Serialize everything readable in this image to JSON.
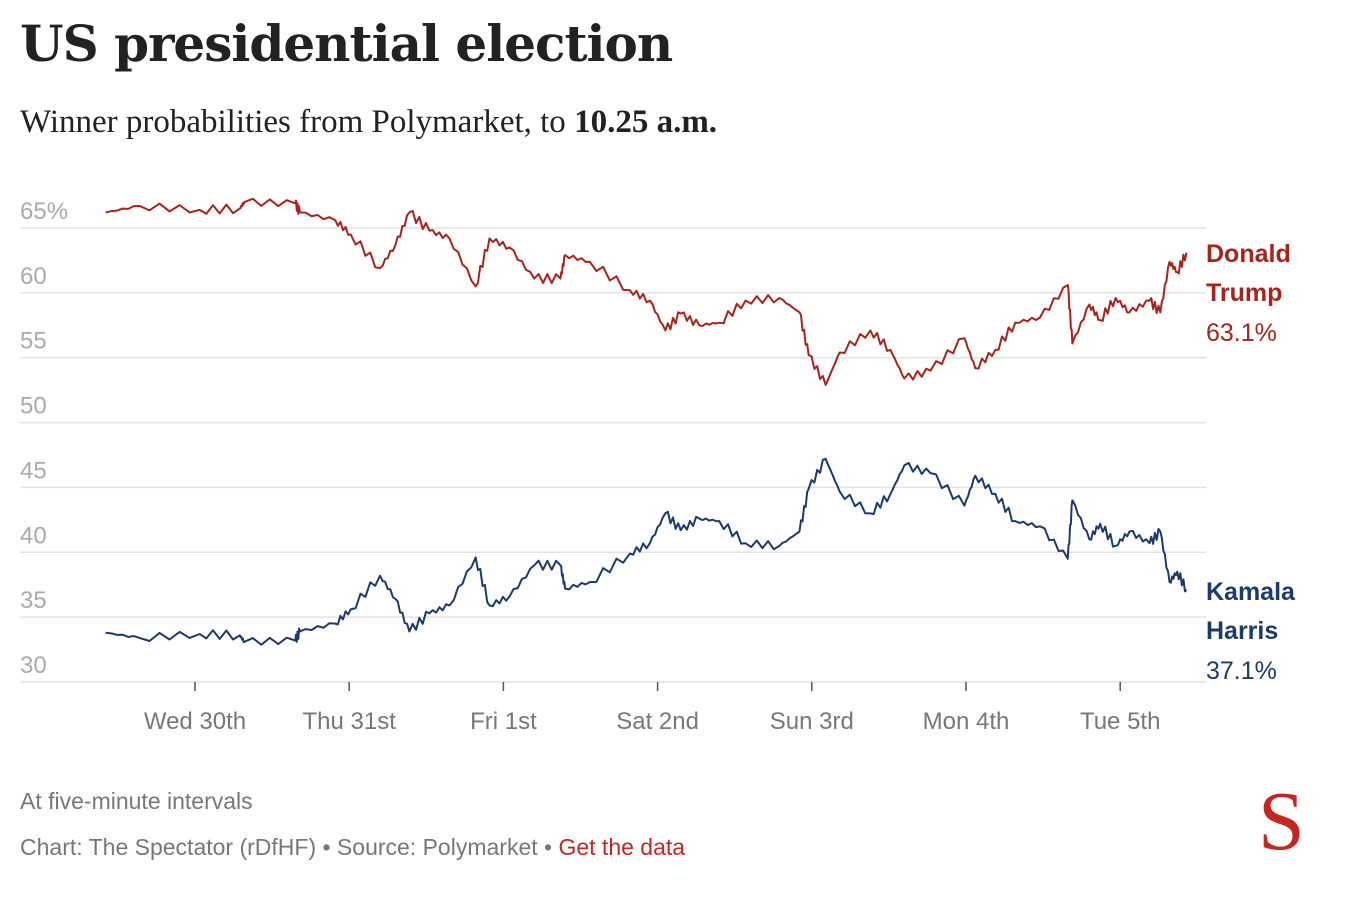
{
  "header": {
    "title": "US presidential election",
    "subtitle_prefix": "Winner probabilities from Polymarket, to ",
    "subtitle_time": "10.25 a.m."
  },
  "chart_data": {
    "type": "line",
    "title": "US presidential election",
    "subtitle": "Winner probabilities from Polymarket, to 10.25 a.m.",
    "x_units": "days since Wed 30th 00:00",
    "xlim": [
      -0.75,
      6.6
    ],
    "ylim": [
      30,
      65
    ],
    "y_ticks": [
      {
        "value": 65,
        "label": "65%"
      },
      {
        "value": 60,
        "label": "60"
      },
      {
        "value": 55,
        "label": "55"
      },
      {
        "value": 50,
        "label": "50"
      },
      {
        "value": 45,
        "label": "45"
      },
      {
        "value": 40,
        "label": "40"
      },
      {
        "value": 35,
        "label": "35"
      },
      {
        "value": 30,
        "label": "30"
      }
    ],
    "x_ticks": [
      {
        "value": 0,
        "label": "Wed 30th"
      },
      {
        "value": 1,
        "label": "Thu 31st"
      },
      {
        "value": 2,
        "label": "Fri 1st"
      },
      {
        "value": 3,
        "label": "Sat 2nd"
      },
      {
        "value": 4,
        "label": "Sun 3rd"
      },
      {
        "value": 5,
        "label": "Mon 4th"
      },
      {
        "value": 6,
        "label": "Tue 5th"
      }
    ],
    "grid": true,
    "x": [
      -0.58,
      -0.36,
      0.03,
      0.29,
      0.32,
      0.65,
      0.68,
      0.91,
      1.01,
      1.2,
      1.3,
      1.39,
      1.52,
      1.65,
      1.82,
      1.91,
      2.04,
      2.2,
      2.37,
      2.4,
      2.56,
      2.82,
      2.95,
      3.05,
      3.15,
      3.27,
      3.4,
      3.57,
      3.79,
      3.92,
      3.98,
      4.09,
      4.18,
      4.38,
      4.51,
      4.6,
      4.77,
      4.99,
      5.06,
      5.19,
      5.32,
      5.48,
      5.66,
      5.69,
      5.8,
      5.87,
      5.97,
      6.06,
      6.19,
      6.26,
      6.32,
      6.37,
      6.43
    ],
    "series": [
      {
        "name": "Donald Trump",
        "first": "Donald",
        "last": "Trump",
        "final_label": "63.1%",
        "color": "#a8231c",
        "values": [
          66.2,
          66.7,
          66.4,
          66.5,
          67,
          66.9,
          66.2,
          65.6,
          64.5,
          61.9,
          63.7,
          66.2,
          64.8,
          64.2,
          60.5,
          64.2,
          63.5,
          61.1,
          61.1,
          62.9,
          62.4,
          60.2,
          59.4,
          57.1,
          58.4,
          57.5,
          57.7,
          59.4,
          59.6,
          58.5,
          55.2,
          52.9,
          55.4,
          57.1,
          55.6,
          53.4,
          54,
          56.5,
          54.2,
          55.6,
          57.7,
          58.1,
          60.6,
          56.1,
          59.1,
          57.9,
          59.6,
          58.5,
          59.4,
          58.5,
          62.4,
          61.6,
          63.1
        ]
      },
      {
        "name": "Kamala Harris",
        "first": "Kamala",
        "last": "Harris",
        "final_label": "37.1%",
        "color": "#1b3a6e",
        "values": [
          33.8,
          33.4,
          33.7,
          33.6,
          33.1,
          33.2,
          33.9,
          34.5,
          35.6,
          38.2,
          36.4,
          33.9,
          35.3,
          35.9,
          39.6,
          35.9,
          36.6,
          39,
          39,
          37.2,
          37.7,
          39.9,
          40.7,
          43,
          41.7,
          42.6,
          42.4,
          40.7,
          40.5,
          41.6,
          44.9,
          47.2,
          44.7,
          43,
          44.5,
          46.7,
          46.1,
          43.6,
          45.9,
          44.5,
          42.4,
          42,
          39.5,
          44,
          41,
          42.2,
          40.5,
          41.6,
          40.7,
          41.6,
          37.7,
          38.5,
          37.1
        ]
      }
    ]
  },
  "footer": {
    "note": "At five-minute intervals",
    "credit": "Chart: The Spectator (rDfHF) • Source: Polymarket • ",
    "data_link": "Get the data",
    "logo": "S"
  }
}
